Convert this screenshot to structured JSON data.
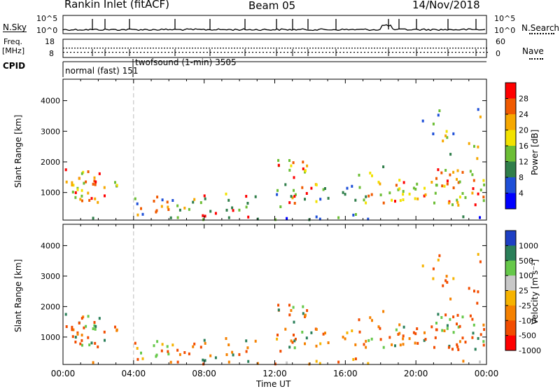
{
  "header": {
    "station": "Rankin Inlet (fitACF)",
    "beam": "Beam 05",
    "date": "14/Nov/2018"
  },
  "left_labels": {
    "nsky": "N.Sky",
    "freq": "Freq.",
    "freq_unit": "[MHz]",
    "cpid": "CPID"
  },
  "right_labels": {
    "nsearch": "N.Search",
    "nave": "Nave"
  },
  "mini_axes": {
    "nsky_ticks": [
      "10^5",
      "10^0"
    ],
    "nsearch_ticks": [
      "10^5",
      "10^0"
    ],
    "freq_ticks": [
      "18",
      "8"
    ],
    "nave_ticks": [
      "60",
      "0"
    ]
  },
  "cpid_labels": {
    "mode1": "normal (fast) 151",
    "mode2": "twofsound (1-min) 3505"
  },
  "chart_data": [
    {
      "type": "heatmap",
      "ylabel": "Slant Range [km]",
      "y_ticks": [
        "1000",
        "2000",
        "3000",
        "4000"
      ],
      "colorbar_label": "Power [dB]",
      "colorbar_ticks": [
        "4",
        "8",
        "12",
        "16",
        "20",
        "24",
        "28"
      ],
      "colorbar_colors": [
        "#0000ff",
        "#1e4fd8",
        "#2f7e4a",
        "#6cbe35",
        "#f2e200",
        "#f6a800",
        "#f05a00",
        "#ff0000"
      ]
    },
    {
      "type": "heatmap",
      "ylabel": "Slant Range [km]",
      "y_ticks": [
        "1000",
        "2000",
        "3000",
        "4000"
      ],
      "colorbar_label": "Velocity [m s⁻¹]",
      "colorbar_ticks": [
        "1000",
        "500",
        "100",
        "25",
        "-25",
        "-100",
        "-500",
        "-1000"
      ],
      "colorbar_colors": [
        "#1d3fc4",
        "#2a7f59",
        "#66c84a",
        "#c8c8c8",
        "#f6b300",
        "#f58100",
        "#f24c00",
        "#ff0000"
      ]
    }
  ],
  "x_axis": {
    "ticks": [
      "00:00",
      "04:00",
      "08:00",
      "12:00",
      "16:00",
      "20:00",
      "00:00"
    ],
    "label": "Time UT"
  }
}
